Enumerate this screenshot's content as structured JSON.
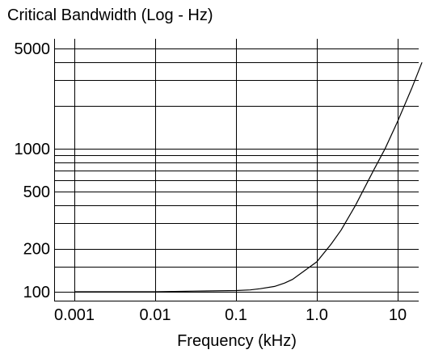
{
  "chart_data": {
    "type": "line",
    "title": "Critical Bandwidth (Log - Hz)",
    "xlabel": "Frequency (kHz)",
    "ylabel": "",
    "x_scale": "log",
    "y_scale": "log",
    "xlim": [
      0.001,
      20
    ],
    "ylim": [
      100,
      5000
    ],
    "x_tick_labels": [
      "0.001",
      "0.01",
      "0.1",
      "1.0",
      "10"
    ],
    "x_tick_values": [
      0.001,
      0.01,
      0.1,
      1.0,
      10
    ],
    "y_tick_labels": [
      "5000",
      "1000",
      "500",
      "200",
      "100"
    ],
    "y_tick_values": [
      5000,
      1000,
      500,
      200,
      100
    ],
    "y_grid_values": [
      100,
      150,
      200,
      300,
      400,
      500,
      600,
      700,
      800,
      900,
      1000,
      2000,
      3000,
      4000,
      5000
    ],
    "x_grid_values": [
      0.001,
      0.01,
      0.1,
      1.0,
      10
    ],
    "grid": true,
    "series": [
      {
        "color": "#000000",
        "x": [
          0.001,
          0.003,
          0.01,
          0.03,
          0.1,
          0.15,
          0.2,
          0.3,
          0.4,
          0.5,
          0.7,
          1.0,
          1.5,
          2.0,
          3.0,
          5.0,
          7.0,
          10.0,
          15.0,
          20.0
        ],
        "y": [
          100,
          100,
          100,
          101,
          102,
          103,
          105,
          109,
          115,
          122,
          140,
          162,
          215,
          270,
          400,
          700,
          1000,
          1550,
          2650,
          4000
        ]
      }
    ]
  }
}
